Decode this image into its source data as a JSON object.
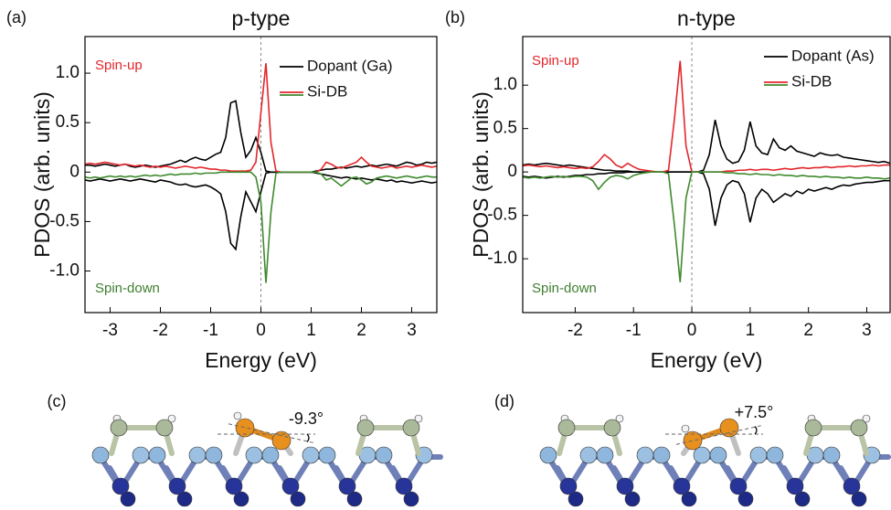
{
  "chart_data": [
    {
      "type": "line",
      "panel_label": "(a)",
      "title": "p-type",
      "xlabel": "Energy (eV)",
      "ylabel": "PDOS (arb. units)",
      "annotations": [
        {
          "text": "Spin-up",
          "color": "#e3262b"
        },
        {
          "text": "Spin-down",
          "color": "#3f7f2f"
        }
      ],
      "legend": "upper right",
      "x": [
        -3.5,
        -3.4,
        -3.3,
        -3.2,
        -3.1,
        -3.0,
        -2.9,
        -2.8,
        -2.7,
        -2.6,
        -2.5,
        -2.4,
        -2.3,
        -2.2,
        -2.1,
        -2.0,
        -1.9,
        -1.8,
        -1.7,
        -1.6,
        -1.5,
        -1.4,
        -1.3,
        -1.2,
        -1.1,
        -1.0,
        -0.9,
        -0.8,
        -0.7,
        -0.6,
        -0.5,
        -0.4,
        -0.3,
        -0.2,
        -0.1,
        0.0,
        0.1,
        0.2,
        0.3,
        0.4,
        0.5,
        0.6,
        0.7,
        0.8,
        0.9,
        1.0,
        1.1,
        1.2,
        1.3,
        1.4,
        1.5,
        1.6,
        1.7,
        1.8,
        1.9,
        2.0,
        2.1,
        2.2,
        2.3,
        2.4,
        2.5,
        2.6,
        2.7,
        2.8,
        2.9,
        3.0,
        3.1,
        3.2,
        3.3,
        3.4,
        3.5
      ],
      "series": [
        {
          "name": "Dopant (Ga)",
          "color": "#000000",
          "values": [
            0.07,
            0.07,
            0.06,
            0.07,
            0.08,
            0.07,
            0.06,
            0.07,
            0.08,
            0.06,
            0.05,
            0.06,
            0.07,
            0.06,
            0.05,
            0.06,
            0.07,
            0.08,
            0.1,
            0.12,
            0.1,
            0.13,
            0.15,
            0.13,
            0.12,
            0.15,
            0.18,
            0.2,
            0.35,
            0.7,
            0.72,
            0.4,
            0.15,
            0.22,
            0.35,
            0.2,
            0.01,
            0,
            0,
            0,
            0,
            0,
            0,
            0,
            0,
            0,
            0.01,
            0.02,
            0.03,
            0.03,
            0.04,
            0.05,
            0.04,
            0.05,
            0.06,
            0.05,
            0.06,
            0.07,
            0.06,
            0.07,
            0.08,
            0.07,
            0.06,
            0.08,
            0.1,
            0.09,
            0.07,
            0.08,
            0.1,
            0.09,
            0.1
          ]
        },
        {
          "color": "#000000",
          "values": [
            -0.08,
            -0.09,
            -0.08,
            -0.07,
            -0.08,
            -0.09,
            -0.08,
            -0.07,
            -0.08,
            -0.09,
            -0.08,
            -0.07,
            -0.08,
            -0.09,
            -0.1,
            -0.08,
            -0.09,
            -0.1,
            -0.12,
            -0.13,
            -0.12,
            -0.14,
            -0.15,
            -0.14,
            -0.13,
            -0.15,
            -0.18,
            -0.22,
            -0.4,
            -0.72,
            -0.78,
            -0.45,
            -0.2,
            -0.3,
            -0.4,
            -0.2,
            -0.01,
            0,
            0,
            0,
            0,
            0,
            0,
            0,
            0,
            0,
            -0.01,
            -0.02,
            -0.03,
            -0.04,
            -0.05,
            -0.06,
            -0.05,
            -0.06,
            -0.07,
            -0.06,
            -0.07,
            -0.08,
            -0.07,
            -0.08,
            -0.09,
            -0.08,
            -0.1,
            -0.09,
            -0.1,
            -0.11,
            -0.1,
            -0.09,
            -0.1,
            -0.11,
            -0.1
          ]
        },
        {
          "name": "Si-DB",
          "color": "#e3262b",
          "values": [
            0.08,
            0.09,
            0.08,
            0.09,
            0.1,
            0.09,
            0.08,
            0.07,
            0.08,
            0.07,
            0.06,
            0.07,
            0.06,
            0.05,
            0.06,
            0.05,
            0.06,
            0.05,
            0.04,
            0.05,
            0.06,
            0.05,
            0.04,
            0.05,
            0.04,
            0.03,
            0.03,
            0.02,
            0.02,
            0.01,
            0.01,
            0.01,
            0.01,
            0.02,
            0.1,
            0.6,
            1.1,
            0.3,
            0.01,
            0,
            0,
            0,
            0,
            0,
            0,
            0,
            0,
            0.03,
            0.1,
            0.08,
            0.05,
            0.04,
            0.06,
            0.08,
            0.1,
            0.15,
            0.1,
            0.06,
            0.05,
            0.04,
            0.05,
            0.06,
            0.04,
            0.05,
            0.06,
            0.05,
            0.06,
            0.07,
            0.06,
            0.05,
            0.06
          ]
        },
        {
          "color": "#3f8a2e",
          "values": [
            -0.05,
            -0.06,
            -0.05,
            -0.06,
            -0.05,
            -0.04,
            -0.05,
            -0.04,
            -0.05,
            -0.04,
            -0.05,
            -0.04,
            -0.03,
            -0.04,
            -0.03,
            -0.04,
            -0.03,
            -0.02,
            -0.03,
            -0.02,
            -0.02,
            -0.02,
            -0.01,
            -0.02,
            -0.01,
            -0.01,
            -0.01,
            0,
            0,
            0,
            0,
            0,
            0,
            0,
            -0.05,
            -0.3,
            -1.12,
            -0.4,
            -0.01,
            0,
            0,
            0,
            0,
            0,
            0,
            0,
            0,
            -0.02,
            -0.08,
            -0.06,
            -0.1,
            -0.14,
            -0.1,
            -0.06,
            -0.05,
            -0.08,
            -0.12,
            -0.1,
            -0.06,
            -0.05,
            -0.04,
            -0.05,
            -0.06,
            -0.05,
            -0.04,
            -0.05,
            -0.06,
            -0.05,
            -0.04,
            -0.05,
            -0.05
          ]
        }
      ],
      "xlim": [
        -3.5,
        3.5
      ],
      "xticks": [
        -3,
        -2,
        -1,
        0,
        1,
        2,
        3
      ],
      "ylim": [
        -1.42,
        1.37
      ],
      "yticks": [
        {
          "value": -1,
          "label": "-1.0"
        },
        -0.5,
        0,
        0.5,
        {
          "value": 1,
          "label": "1.0"
        }
      ],
      "grid": false
    },
    {
      "type": "line",
      "panel_label": "(b)",
      "title": "n-type",
      "xlabel": "Energy (eV)",
      "ylabel": "PDOS (arb. units)",
      "annotations": [
        {
          "text": "Spin-up",
          "color": "#e3262b"
        },
        {
          "text": "Spin-down",
          "color": "#3f7f2f"
        }
      ],
      "legend": "upper right",
      "x": [
        -2.9,
        -2.8,
        -2.7,
        -2.6,
        -2.5,
        -2.4,
        -2.3,
        -2.2,
        -2.1,
        -2.0,
        -1.9,
        -1.8,
        -1.7,
        -1.6,
        -1.5,
        -1.4,
        -1.3,
        -1.2,
        -1.1,
        -1.0,
        -0.9,
        -0.8,
        -0.7,
        -0.6,
        -0.5,
        -0.4,
        -0.3,
        -0.2,
        -0.1,
        0.0,
        0.1,
        0.2,
        0.3,
        0.4,
        0.5,
        0.6,
        0.7,
        0.8,
        0.9,
        1.0,
        1.1,
        1.2,
        1.3,
        1.4,
        1.5,
        1.6,
        1.7,
        1.8,
        1.9,
        2.0,
        2.1,
        2.2,
        2.3,
        2.4,
        2.5,
        2.6,
        2.7,
        2.8,
        2.9,
        3.0,
        3.1,
        3.2,
        3.3,
        3.4
      ],
      "series": [
        {
          "name": "Dopant (As)",
          "color": "#000000",
          "values": [
            0.08,
            0.09,
            0.08,
            0.09,
            0.1,
            0.09,
            0.08,
            0.07,
            0.08,
            0.07,
            0.06,
            0.05,
            0.04,
            0.03,
            0.02,
            0.02,
            0.01,
            0.01,
            0.01,
            0,
            0,
            0,
            0,
            0,
            0,
            0,
            0,
            0,
            0,
            0,
            0,
            0.02,
            0.2,
            0.6,
            0.3,
            0.15,
            0.1,
            0.12,
            0.25,
            0.58,
            0.3,
            0.22,
            0.2,
            0.38,
            0.28,
            0.25,
            0.3,
            0.24,
            0.22,
            0.2,
            0.18,
            0.22,
            0.2,
            0.19,
            0.2,
            0.17,
            0.16,
            0.15,
            0.14,
            0.13,
            0.12,
            0.11,
            0.12,
            0.1
          ]
        },
        {
          "color": "#000000",
          "values": [
            -0.05,
            -0.06,
            -0.05,
            -0.06,
            -0.07,
            -0.06,
            -0.05,
            -0.06,
            -0.05,
            -0.04,
            -0.04,
            -0.03,
            -0.03,
            -0.02,
            -0.02,
            -0.01,
            -0.01,
            -0.01,
            0,
            0,
            0,
            0,
            0,
            0,
            0,
            0,
            0,
            0,
            0,
            0,
            0,
            -0.02,
            -0.2,
            -0.62,
            -0.3,
            -0.15,
            -0.1,
            -0.12,
            -0.25,
            -0.58,
            -0.3,
            -0.2,
            -0.25,
            -0.35,
            -0.3,
            -0.25,
            -0.28,
            -0.22,
            -0.25,
            -0.2,
            -0.22,
            -0.2,
            -0.18,
            -0.2,
            -0.17,
            -0.15,
            -0.16,
            -0.14,
            -0.13,
            -0.12,
            -0.12,
            -0.11,
            -0.1,
            -0.1
          ]
        },
        {
          "name": "Si-DB",
          "color": "#e3262b",
          "values": [
            0.07,
            0.08,
            0.07,
            0.06,
            0.07,
            0.06,
            0.05,
            0.06,
            0.05,
            0.04,
            0.05,
            0.04,
            0.06,
            0.12,
            0.2,
            0.15,
            0.08,
            0.05,
            0.1,
            0.06,
            0.03,
            0.02,
            0.01,
            0,
            0,
            0.02,
            0.6,
            1.28,
            0.3,
            0,
            0,
            0,
            0,
            0,
            0,
            0.01,
            0.01,
            0.02,
            0.02,
            0.03,
            0.02,
            0.03,
            0.03,
            0.02,
            0.03,
            0.04,
            0.03,
            0.04,
            0.05,
            0.04,
            0.05,
            0.05,
            0.06,
            0.05,
            0.06,
            0.06,
            0.07,
            0.06,
            0.07,
            0.07,
            0.08,
            0.07,
            0.08,
            0.08
          ]
        },
        {
          "color": "#3f8a2e",
          "values": [
            -0.06,
            -0.07,
            -0.06,
            -0.07,
            -0.06,
            -0.05,
            -0.06,
            -0.05,
            -0.06,
            -0.05,
            -0.05,
            -0.06,
            -0.1,
            -0.2,
            -0.12,
            -0.06,
            -0.04,
            -0.05,
            -0.08,
            -0.04,
            -0.02,
            -0.01,
            0,
            0,
            0,
            -0.02,
            -0.6,
            -1.27,
            -0.3,
            0,
            0,
            0,
            0,
            0,
            0,
            -0.01,
            -0.01,
            -0.02,
            -0.02,
            -0.03,
            -0.02,
            -0.03,
            -0.03,
            -0.04,
            -0.03,
            -0.04,
            -0.04,
            -0.05,
            -0.04,
            -0.05,
            -0.05,
            -0.06,
            -0.05,
            -0.06,
            -0.06,
            -0.07,
            -0.06,
            -0.07,
            -0.07,
            -0.06,
            -0.07,
            -0.07,
            -0.08,
            -0.07
          ]
        }
      ],
      "xlim": [
        -2.9,
        3.4
      ],
      "xticks": [
        -2,
        -1,
        0,
        1,
        2,
        3
      ],
      "ylim": [
        -1.62,
        1.56
      ],
      "yticks": [
        {
          "value": -1,
          "label": "-1.0"
        },
        -0.5,
        0,
        0.5,
        {
          "value": 1,
          "label": "1.0"
        }
      ],
      "grid": false
    }
  ],
  "structures": [
    {
      "label": "(c)",
      "angle": "-9.3°"
    },
    {
      "label": "(d)",
      "angle": "+7.5°"
    }
  ]
}
